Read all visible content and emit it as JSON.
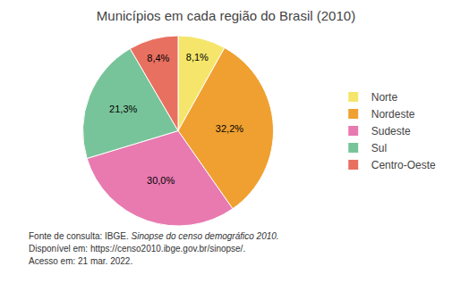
{
  "chart_data": {
    "type": "pie",
    "title": "Municípios em cada região do Brasil (2010)",
    "categories": [
      "Norte",
      "Nordeste",
      "Sudeste",
      "Sul",
      "Centro-Oeste"
    ],
    "values": [
      8.1,
      32.2,
      30.0,
      21.3,
      8.4
    ],
    "value_labels": [
      "8,1%",
      "32,2%",
      "30,0%",
      "21,3%",
      "8,4%"
    ],
    "colors": [
      "#f5e66b",
      "#f0a030",
      "#e87ab0",
      "#78c49a",
      "#e87060"
    ],
    "data_labels": true,
    "legend": "right",
    "annotations": [
      "Fonte de consulta: IBGE.",
      "Sinopse do censo demográfico 2010.",
      "Disponível em: https://censo2010.ibge.gov.br/sinopse/.",
      "Acesso em: 21 mar. 2022."
    ]
  }
}
